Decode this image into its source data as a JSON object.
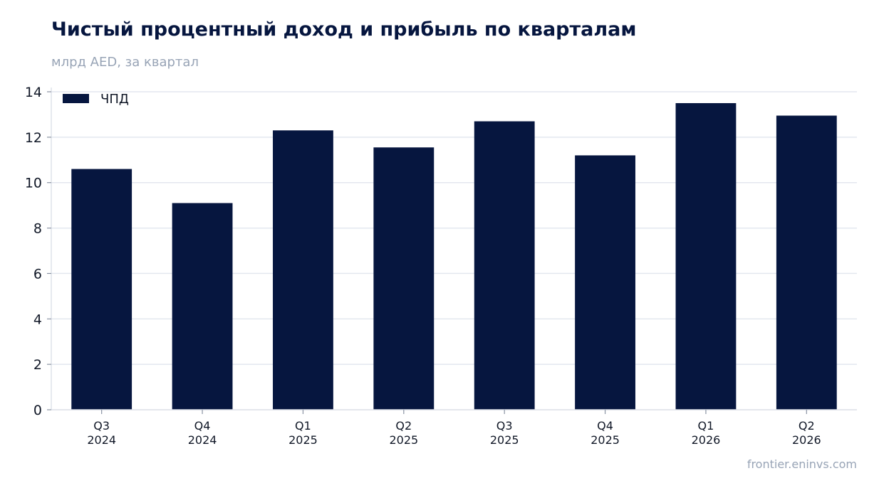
{
  "chart_data": {
    "type": "bar",
    "title": "Чистый процентный доход и прибыль по кварталам",
    "subtitle": "млрд AED, за квартал",
    "categories": [
      [
        "Q3",
        "2024"
      ],
      [
        "Q4",
        "2024"
      ],
      [
        "Q1",
        "2025"
      ],
      [
        "Q2",
        "2025"
      ],
      [
        "Q3",
        "2025"
      ],
      [
        "Q4",
        "2025"
      ],
      [
        "Q1",
        "2026"
      ],
      [
        "Q2",
        "2026"
      ]
    ],
    "series": [
      {
        "name": "ЧПД",
        "color": "#06163f",
        "values": [
          10.6,
          9.1,
          12.3,
          11.55,
          12.7,
          11.2,
          13.5,
          12.95
        ]
      }
    ],
    "yticks": [
      "0",
      "2",
      "4",
      "6",
      "8",
      "10",
      "12",
      "14"
    ],
    "ylim": [
      0,
      14
    ],
    "grid": true,
    "legend_position": "top-left"
  },
  "source": "frontier.eninvs.com"
}
